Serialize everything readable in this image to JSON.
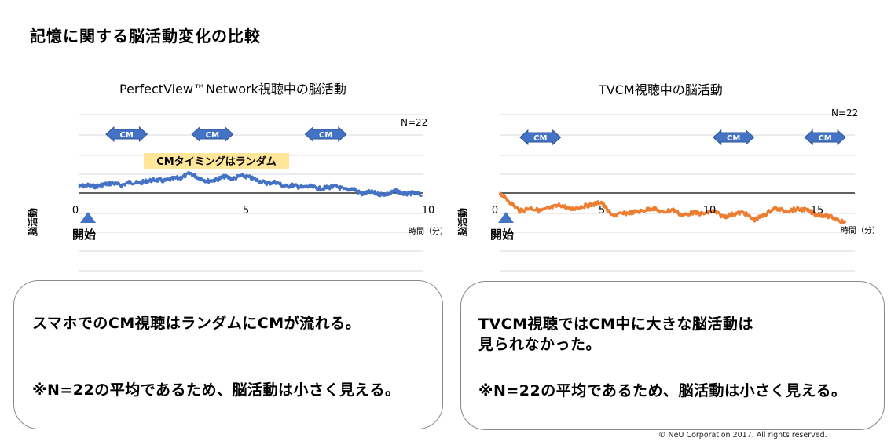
{
  "page_title": "記憶に関する脳活動変化の比較",
  "colors": {
    "left_line": "#4472c4",
    "right_line": "#ed7d31",
    "cm_arrow": "#4472c4",
    "note_bg": "#ffe699",
    "grid": "#d9d9d9"
  },
  "chart_data": [
    {
      "type": "line",
      "title": "PerfectView™Network視聴中の脳活動",
      "ylabel": "脳活動",
      "xlabel": "時間（分）",
      "start_label": "開始",
      "n_label": "N=22",
      "note": "CMタイミングはランダム",
      "xlim": [
        0,
        10
      ],
      "x_ticks": [
        "0",
        "5",
        "10"
      ],
      "cm_markers": [
        {
          "label": "CM",
          "start": 0.8,
          "end": 2.0
        },
        {
          "label": "CM",
          "start": 3.3,
          "end": 4.5
        },
        {
          "label": "CM",
          "start": 6.6,
          "end": 7.8
        }
      ],
      "series": [
        {
          "x": [
            0,
            0.25,
            0.5,
            0.75,
            1.0,
            1.25,
            1.5,
            1.75,
            2.0,
            2.25,
            2.5,
            2.75,
            3.0,
            3.25,
            3.5,
            3.75,
            4.0,
            4.25,
            4.5,
            4.75,
            5.0,
            5.25,
            5.5,
            5.75,
            6.0,
            6.25,
            6.5,
            6.75,
            7.0,
            7.25,
            7.5,
            7.75,
            8.0,
            8.25,
            8.5,
            8.75,
            9.0,
            9.25,
            9.5,
            9.75,
            10.0
          ],
          "y": [
            0.3,
            0.35,
            0.3,
            0.4,
            0.45,
            0.35,
            0.5,
            0.45,
            0.55,
            0.6,
            0.55,
            0.65,
            0.7,
            0.9,
            0.7,
            0.55,
            0.6,
            0.75,
            0.65,
            0.8,
            0.7,
            0.55,
            0.45,
            0.5,
            0.3,
            0.35,
            0.25,
            0.3,
            0.2,
            0.25,
            0.3,
            0.15,
            0.2,
            -0.05,
            0.05,
            -0.05,
            -0.05,
            0.1,
            -0.05,
            0.0,
            -0.1
          ]
        }
      ]
    },
    {
      "type": "line",
      "title": "TVCM視聴中の脳活動",
      "ylabel": "脳活動",
      "xlabel": "時間（分）",
      "start_label": "開始",
      "n_label": "N=22",
      "xlim": [
        0,
        17
      ],
      "x_ticks": [
        "0",
        "5",
        "10",
        "15"
      ],
      "cm_markers": [
        {
          "label": "CM",
          "start": 1.0,
          "end": 3.0
        },
        {
          "label": "CM",
          "start": 10.5,
          "end": 12.5
        },
        {
          "label": "CM",
          "start": 15.0,
          "end": 17.0
        }
      ],
      "series": [
        {
          "x": [
            0,
            0.5,
            1,
            1.5,
            2,
            2.5,
            3,
            3.5,
            4,
            4.5,
            5,
            5.5,
            6,
            6.5,
            7,
            7.5,
            8,
            8.5,
            9,
            9.5,
            10,
            10.5,
            11,
            11.5,
            12,
            12.5,
            13,
            13.5,
            14,
            14.5,
            15,
            15.5,
            16,
            16.5,
            17
          ],
          "y": [
            0.0,
            -0.3,
            -0.6,
            -0.5,
            -0.6,
            -0.5,
            -0.4,
            -0.55,
            -0.45,
            -0.4,
            -0.3,
            -0.75,
            -0.7,
            -0.65,
            -0.6,
            -0.5,
            -0.65,
            -0.55,
            -0.75,
            -0.65,
            -0.7,
            -0.6,
            -0.8,
            -0.7,
            -0.65,
            -0.9,
            -0.75,
            -0.5,
            -0.6,
            -0.55,
            -0.55,
            -0.7,
            -0.75,
            -0.85,
            -1.0
          ]
        }
      ]
    }
  ],
  "boxes": [
    {
      "line1": "スマホでのCM視聴はランダムにCMが流れる。",
      "line2": "※N=22の平均であるため、脳活動は小さく見える。"
    },
    {
      "line1": "TVCM視聴ではCM中に大きな脳活動は\n見られなかった。",
      "line2": "※N=22の平均であるため、脳活動は小さく見える。"
    }
  ],
  "copyright": "© NeU Corporation 2017. All rights reserved."
}
